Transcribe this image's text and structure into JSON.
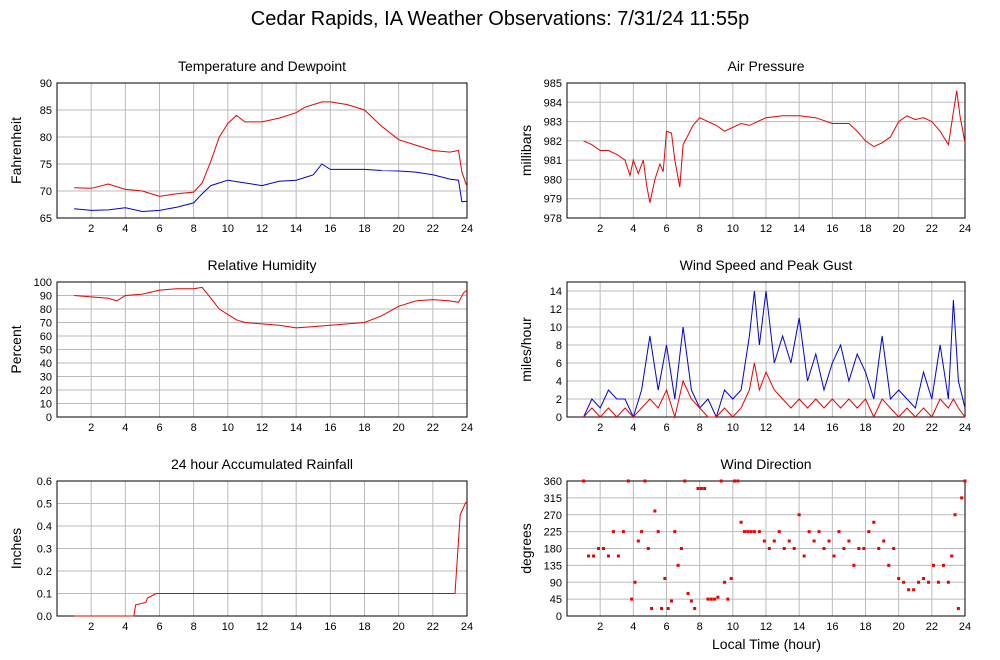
{
  "page": {
    "title": "Cedar Rapids, IA Weather Observations: 7/31/24 11:55p",
    "xlabel": "Local Time (hour)"
  },
  "colors": {
    "red": "#ee0000",
    "blue": "#0000dd",
    "grid": "#bbbbbb",
    "axis": "#000000"
  },
  "chart_data": [
    {
      "id": "temp",
      "type": "line",
      "title": "Temperature and Dewpoint",
      "ylabel": "Fahrenheit",
      "xlim": [
        0,
        24
      ],
      "ylim": [
        65,
        90
      ],
      "yticks": [
        65,
        70,
        75,
        80,
        85,
        90
      ],
      "xticks": [
        2,
        4,
        6,
        8,
        10,
        12,
        14,
        16,
        18,
        20,
        22,
        24
      ],
      "grid": true,
      "series": [
        {
          "color": "red",
          "x": [
            1,
            2,
            3,
            4,
            5,
            6,
            7,
            8,
            8.5,
            9,
            9.5,
            10,
            10.5,
            11,
            12,
            13,
            14,
            14.5,
            15,
            15.5,
            16,
            17,
            18,
            19,
            20,
            21,
            22,
            23,
            23.5,
            23.7,
            24
          ],
          "y": [
            70.6,
            70.5,
            71.3,
            70.3,
            70.0,
            69.0,
            69.5,
            69.8,
            71.5,
            75.5,
            80.0,
            82.5,
            84.0,
            82.8,
            82.8,
            83.5,
            84.5,
            85.5,
            86.0,
            86.5,
            86.5,
            86.0,
            85.0,
            82.0,
            79.5,
            78.5,
            77.5,
            77.2,
            77.5,
            73.5,
            70.8
          ]
        },
        {
          "color": "blue",
          "x": [
            1,
            2,
            3,
            4,
            5,
            6,
            7,
            8,
            8.5,
            9,
            9.5,
            10,
            11,
            12,
            13,
            14,
            15,
            15.5,
            16,
            17,
            18,
            19,
            20,
            21,
            22,
            23,
            23.5,
            23.7,
            24
          ],
          "y": [
            66.7,
            66.4,
            66.5,
            66.9,
            66.2,
            66.4,
            67.0,
            67.8,
            69.5,
            71.0,
            71.5,
            72.0,
            71.5,
            71.0,
            71.8,
            72.0,
            73.0,
            75.0,
            74.0,
            74.0,
            74.0,
            73.8,
            73.7,
            73.5,
            73.0,
            72.2,
            72.0,
            68.0,
            68.1
          ]
        }
      ]
    },
    {
      "id": "pres",
      "type": "line",
      "title": "Air Pressure",
      "ylabel": "millibars",
      "xlim": [
        0,
        24
      ],
      "ylim": [
        978,
        985
      ],
      "yticks": [
        978,
        979,
        980,
        981,
        982,
        983,
        984,
        985
      ],
      "xticks": [
        2,
        4,
        6,
        8,
        10,
        12,
        14,
        16,
        18,
        20,
        22,
        24
      ],
      "grid": true,
      "series": [
        {
          "color": "red",
          "x": [
            1,
            1.5,
            2,
            2.5,
            3,
            3.5,
            3.8,
            4,
            4.3,
            4.6,
            4.8,
            5,
            5.3,
            5.6,
            5.8,
            6,
            6.3,
            6.5,
            6.8,
            7,
            7.3,
            7.6,
            8,
            8.5,
            9,
            9.5,
            10,
            10.5,
            11,
            12,
            13,
            14,
            15,
            16,
            17,
            17.5,
            18,
            18.5,
            19,
            19.5,
            20,
            20.5,
            21,
            21.5,
            22,
            22.5,
            23,
            23.3,
            23.5,
            23.7,
            24
          ],
          "y": [
            982.0,
            981.8,
            981.5,
            981.5,
            981.3,
            981.0,
            980.2,
            981.0,
            980.3,
            981.0,
            979.7,
            978.8,
            980.0,
            980.8,
            980.4,
            982.5,
            982.4,
            981.0,
            979.6,
            981.8,
            982.3,
            982.8,
            983.2,
            983.0,
            982.8,
            982.5,
            982.7,
            982.9,
            982.8,
            983.2,
            983.3,
            983.3,
            983.2,
            982.9,
            982.9,
            982.5,
            982.0,
            981.7,
            981.9,
            982.2,
            983.0,
            983.3,
            983.1,
            983.2,
            983.0,
            982.5,
            981.8,
            983.5,
            984.6,
            983.3,
            981.9
          ]
        }
      ]
    },
    {
      "id": "rh",
      "type": "line",
      "title": "Relative Humidity",
      "ylabel": "Percent",
      "xlim": [
        0,
        24
      ],
      "ylim": [
        0,
        100
      ],
      "yticks": [
        0,
        10,
        20,
        30,
        40,
        50,
        60,
        70,
        80,
        90,
        100
      ],
      "xticks": [
        2,
        4,
        6,
        8,
        10,
        12,
        14,
        16,
        18,
        20,
        22,
        24
      ],
      "grid": true,
      "series": [
        {
          "color": "red",
          "x": [
            1,
            2,
            3,
            3.5,
            4,
            5,
            6,
            7,
            8,
            8.5,
            9,
            9.5,
            10,
            10.5,
            11,
            12,
            13,
            14,
            15,
            16,
            17,
            18,
            19,
            20,
            21,
            22,
            23,
            23.5,
            23.8,
            24
          ],
          "y": [
            90,
            89,
            88,
            86,
            90,
            91,
            94,
            95,
            95,
            96,
            88,
            80,
            76,
            72,
            70,
            69,
            68,
            66,
            67,
            68,
            69,
            70,
            75,
            82,
            86,
            87,
            86,
            85,
            92,
            94
          ]
        }
      ]
    },
    {
      "id": "wind",
      "type": "line",
      "title": "Wind Speed and Peak Gust",
      "ylabel": "miles/hour",
      "xlim": [
        0,
        24
      ],
      "ylim": [
        0,
        15
      ],
      "yticks": [
        0,
        2,
        4,
        6,
        8,
        10,
        12,
        14
      ],
      "xticks": [
        2,
        4,
        6,
        8,
        10,
        12,
        14,
        16,
        18,
        20,
        22,
        24
      ],
      "grid": true,
      "series": [
        {
          "color": "blue",
          "x": [
            1,
            1.5,
            2,
            2.5,
            3,
            3.5,
            4,
            4.5,
            5,
            5.5,
            6,
            6.5,
            7,
            7.5,
            8,
            8.5,
            9,
            9.5,
            10,
            10.5,
            11,
            11.3,
            11.6,
            12,
            12.5,
            13,
            13.5,
            14,
            14.5,
            15,
            15.5,
            16,
            16.5,
            17,
            17.5,
            18,
            18.5,
            19,
            19.5,
            20,
            20.5,
            21,
            21.5,
            22,
            22.5,
            23,
            23.3,
            23.6,
            24
          ],
          "y": [
            0,
            2,
            1,
            3,
            2,
            2,
            0,
            3,
            9,
            3,
            8,
            2,
            10,
            3,
            1,
            2,
            0,
            3,
            2,
            3,
            9,
            14,
            8,
            14,
            6,
            9,
            6,
            11,
            4,
            7,
            3,
            6,
            8,
            4,
            7,
            5,
            2,
            9,
            2,
            3,
            2,
            1,
            5,
            2,
            8,
            2,
            13,
            4,
            1
          ]
        },
        {
          "color": "red",
          "x": [
            1,
            1.5,
            2,
            2.5,
            3,
            3.5,
            4,
            4.5,
            5,
            5.5,
            6,
            6.5,
            7,
            7.5,
            8,
            8.5,
            9,
            9.5,
            10,
            10.5,
            11,
            11.3,
            11.6,
            12,
            12.5,
            13,
            13.5,
            14,
            14.5,
            15,
            15.5,
            16,
            16.5,
            17,
            17.5,
            18,
            18.5,
            19,
            19.5,
            20,
            20.5,
            21,
            21.5,
            22,
            22.5,
            23,
            23.3,
            23.6,
            24
          ],
          "y": [
            0,
            1,
            0,
            1,
            0,
            1,
            0,
            1,
            2,
            1,
            3,
            0,
            4,
            2,
            1,
            0,
            0,
            1,
            0,
            1,
            3,
            6,
            3,
            5,
            3,
            2,
            1,
            2,
            1,
            2,
            1,
            2,
            1,
            2,
            1,
            2,
            0,
            2,
            1,
            0,
            1,
            0,
            1,
            0,
            2,
            1,
            2,
            1,
            0
          ]
        }
      ]
    },
    {
      "id": "rain",
      "type": "line",
      "title": "24 hour Accumulated Rainfall",
      "ylabel": "Inches",
      "xlim": [
        0,
        24
      ],
      "ylim": [
        0,
        0.6
      ],
      "yticks": [
        0.0,
        0.1,
        0.2,
        0.3,
        0.4,
        0.5,
        0.6
      ],
      "yticklabels": [
        "0.0",
        "0.1",
        "0.2",
        "0.3",
        "0.4",
        "0.5",
        "0.6"
      ],
      "xticks": [
        2,
        4,
        6,
        8,
        10,
        12,
        14,
        16,
        18,
        20,
        22,
        24
      ],
      "grid": true,
      "series": [
        {
          "color": "red",
          "x": [
            1,
            4.5,
            4.6,
            5.2,
            5.3,
            5.8,
            23.3,
            23.6,
            23.9,
            24
          ],
          "y": [
            0.0,
            0.0,
            0.05,
            0.06,
            0.08,
            0.1,
            0.1,
            0.45,
            0.5,
            0.51
          ]
        }
      ]
    },
    {
      "id": "dir",
      "type": "scatter",
      "title": "Wind Direction",
      "ylabel": "degrees",
      "xlim": [
        0,
        24
      ],
      "ylim": [
        0,
        360
      ],
      "yticks": [
        0,
        45,
        90,
        135,
        180,
        225,
        270,
        315,
        360
      ],
      "xticks": [
        2,
        4,
        6,
        8,
        10,
        12,
        14,
        16,
        18,
        20,
        22,
        24
      ],
      "grid": true,
      "series": [
        {
          "color": "red",
          "x": [
            1,
            1.3,
            1.6,
            1.9,
            2.2,
            2.5,
            2.8,
            3.1,
            3.4,
            3.7,
            3.9,
            4.1,
            4.3,
            4.5,
            4.7,
            4.9,
            5.1,
            5.3,
            5.5,
            5.7,
            5.9,
            6.1,
            6.3,
            6.5,
            6.7,
            6.9,
            7.1,
            7.3,
            7.5,
            7.7,
            7.9,
            8.1,
            8.3,
            8.5,
            8.7,
            8.9,
            9.1,
            9.3,
            9.5,
            9.7,
            9.9,
            10.1,
            10.3,
            10.5,
            10.7,
            10.9,
            11.1,
            11.3,
            11.6,
            11.9,
            12.2,
            12.5,
            12.8,
            13.1,
            13.4,
            13.7,
            14,
            14.3,
            14.6,
            14.9,
            15.2,
            15.5,
            15.8,
            16.1,
            16.4,
            16.7,
            17,
            17.3,
            17.6,
            17.9,
            18.2,
            18.5,
            18.8,
            19.1,
            19.4,
            19.7,
            20,
            20.3,
            20.6,
            20.9,
            21.2,
            21.5,
            21.8,
            22.1,
            22.4,
            22.7,
            23,
            23.2,
            23.4,
            23.6,
            23.8,
            24
          ],
          "y": [
            360,
            160,
            160,
            180,
            180,
            160,
            225,
            160,
            225,
            360,
            45,
            90,
            200,
            225,
            360,
            180,
            20,
            280,
            225,
            20,
            100,
            20,
            40,
            225,
            135,
            180,
            360,
            60,
            40,
            20,
            340,
            340,
            340,
            45,
            45,
            45,
            50,
            360,
            90,
            45,
            100,
            360,
            360,
            250,
            225,
            225,
            225,
            225,
            225,
            200,
            180,
            200,
            225,
            180,
            200,
            180,
            270,
            160,
            225,
            200,
            225,
            180,
            200,
            160,
            225,
            180,
            200,
            135,
            180,
            180,
            225,
            250,
            180,
            200,
            135,
            180,
            100,
            90,
            70,
            70,
            90,
            100,
            90,
            135,
            90,
            135,
            90,
            160,
            270,
            20,
            315,
            360
          ]
        }
      ]
    }
  ]
}
